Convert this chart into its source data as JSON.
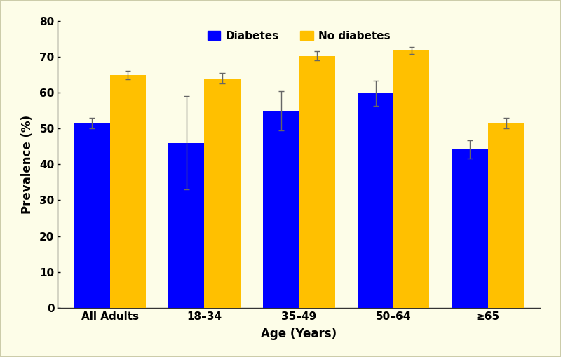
{
  "categories": [
    "All Adults",
    "18–34",
    "35–49",
    "50–64",
    "≥65"
  ],
  "diabetes_values": [
    51.5,
    46.0,
    55.0,
    59.8,
    44.2
  ],
  "no_diabetes_values": [
    65.0,
    64.0,
    70.3,
    71.8,
    51.5
  ],
  "diabetes_errors_upper": [
    1.5,
    13.0,
    5.5,
    3.5,
    2.5
  ],
  "diabetes_errors_lower": [
    1.5,
    13.0,
    5.5,
    3.5,
    2.5
  ],
  "no_diabetes_errors_upper": [
    1.2,
    1.5,
    1.2,
    1.0,
    1.5
  ],
  "no_diabetes_errors_lower": [
    1.2,
    1.5,
    1.2,
    1.0,
    1.5
  ],
  "diabetes_color": "#0000FF",
  "no_diabetes_color": "#FFC000",
  "background_color": "#FDFDE8",
  "outer_background": "#F5F5DC",
  "xlabel": "Age (Years)",
  "ylabel": "Prevalence (%)",
  "ylim": [
    0,
    80
  ],
  "yticks": [
    0,
    10,
    20,
    30,
    40,
    50,
    60,
    70,
    80
  ],
  "legend_labels": [
    "Diabetes",
    "No diabetes"
  ],
  "bar_width": 0.38,
  "error_color": "#666666",
  "error_capsize": 3,
  "error_linewidth": 1.0,
  "tick_fontsize": 11,
  "label_fontsize": 12,
  "legend_fontsize": 11
}
